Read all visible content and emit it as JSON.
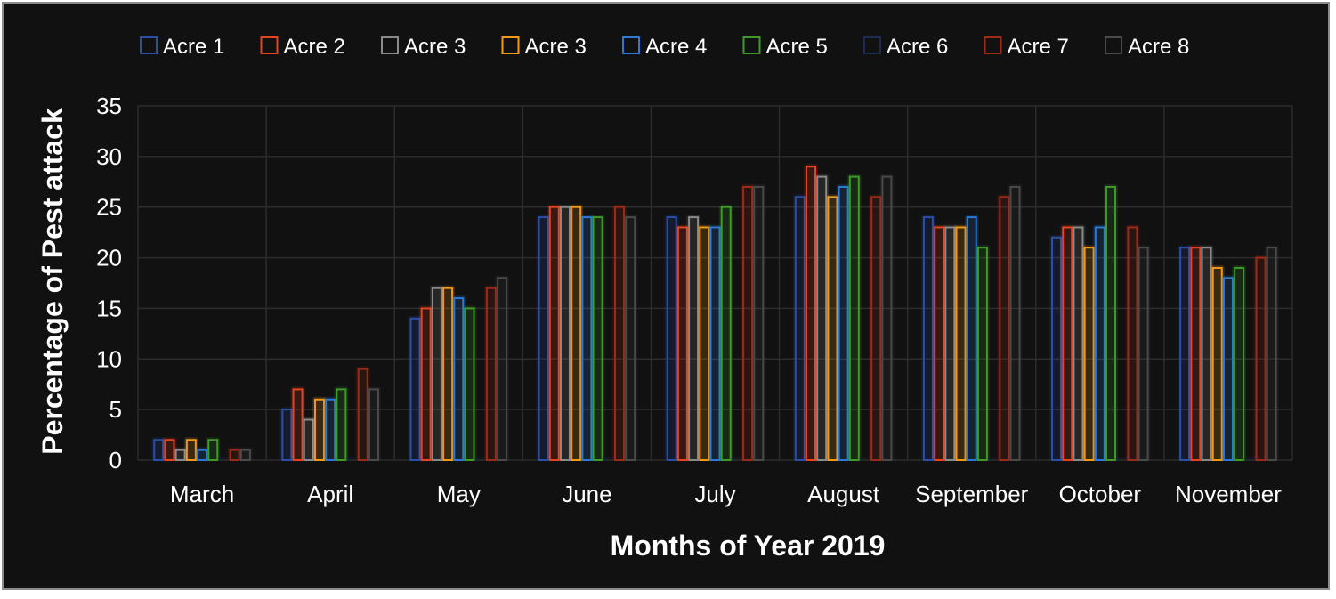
{
  "chart_data": {
    "type": "bar",
    "xlabel": "Months of Year 2019",
    "ylabel": "Percentage of Pest attack",
    "ylim": [
      0,
      35
    ],
    "yticks": [
      0,
      5,
      10,
      15,
      20,
      25,
      30,
      35
    ],
    "grid": true,
    "legend_position": "top",
    "categories": [
      "March",
      "April",
      "May",
      "June",
      "July",
      "August",
      "September",
      "October",
      "November"
    ],
    "series": [
      {
        "name": "Acre 1",
        "color": "#2a4fa8",
        "values": [
          2,
          5,
          14,
          24,
          24,
          26,
          24,
          22,
          21
        ]
      },
      {
        "name": "Acre 2",
        "color": "#e8431f",
        "values": [
          2,
          7,
          15,
          25,
          23,
          29,
          23,
          23,
          21
        ]
      },
      {
        "name": "Acre 3",
        "color": "#8a8a8a",
        "values": [
          1,
          4,
          17,
          25,
          24,
          28,
          23,
          23,
          21
        ]
      },
      {
        "name": "Acre 3",
        "color": "#f29a17",
        "values": [
          2,
          6,
          17,
          25,
          23,
          26,
          23,
          21,
          19
        ]
      },
      {
        "name": "Acre 4",
        "color": "#2a7ad6",
        "values": [
          1,
          6,
          16,
          24,
          23,
          27,
          24,
          23,
          18
        ]
      },
      {
        "name": "Acre 5",
        "color": "#3f9a2a",
        "values": [
          2,
          7,
          15,
          24,
          25,
          28,
          21,
          27,
          19
        ]
      },
      {
        "name": "Acre 6",
        "color": "#1c2a55",
        "values": [
          0,
          0,
          0,
          0,
          0,
          0,
          0,
          0,
          0
        ]
      },
      {
        "name": "Acre 7",
        "color": "#9e2a18",
        "values": [
          1,
          9,
          17,
          25,
          27,
          26,
          26,
          23,
          20
        ]
      },
      {
        "name": "Acre 8",
        "color": "#4a4a4a",
        "values": [
          1,
          7,
          18,
          24,
          27,
          28,
          27,
          21,
          21
        ]
      }
    ]
  }
}
